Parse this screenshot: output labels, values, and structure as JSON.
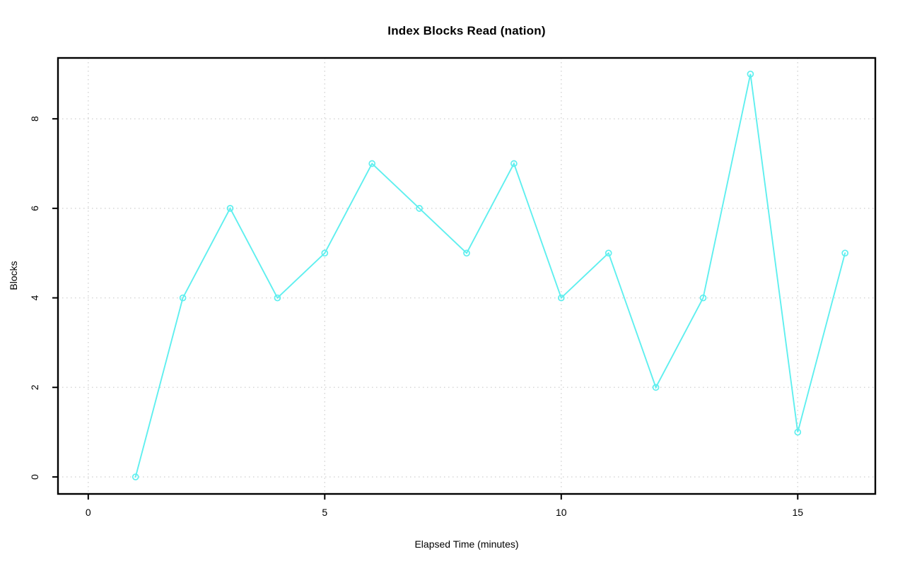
{
  "chart_data": {
    "type": "line",
    "title": "Index Blocks Read (nation)",
    "xlabel": "Elapsed Time (minutes)",
    "ylabel": "Blocks",
    "x": [
      1,
      2,
      3,
      4,
      5,
      6,
      7,
      8,
      9,
      10,
      11,
      12,
      13,
      14,
      15,
      16
    ],
    "y": [
      0,
      4,
      6,
      4,
      5,
      7,
      6,
      5,
      7,
      4,
      5,
      2,
      4,
      9,
      1,
      5
    ],
    "xticks": [
      0,
      5,
      10,
      15
    ],
    "xtick_labels": [
      "0",
      "5",
      "10",
      "15"
    ],
    "yticks": [
      0,
      2,
      4,
      6,
      8
    ],
    "ytick_labels": [
      "0",
      "2",
      "4",
      "6",
      "8"
    ],
    "xlim": [
      -0.64,
      16.64
    ],
    "ylim": [
      -0.38,
      9.36
    ],
    "grid": "dotted",
    "legend": "none",
    "marker": "open-circle",
    "colors": {
      "line": "#5FEFEF",
      "grid": "#D3D3D3",
      "axis": "#000000",
      "background": "#FFFFFF"
    }
  }
}
